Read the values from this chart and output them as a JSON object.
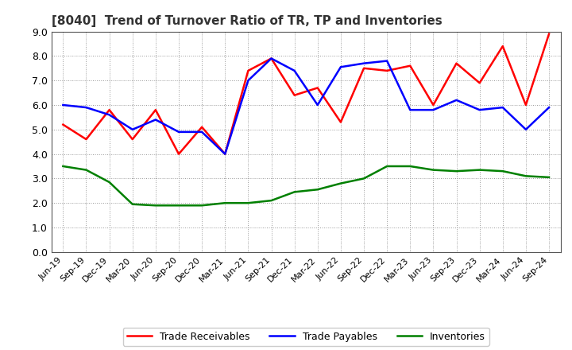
{
  "title": "[8040]  Trend of Turnover Ratio of TR, TP and Inventories",
  "x_labels": [
    "Jun-19",
    "Sep-19",
    "Dec-19",
    "Mar-20",
    "Jun-20",
    "Sep-20",
    "Dec-20",
    "Mar-21",
    "Jun-21",
    "Sep-21",
    "Dec-21",
    "Mar-22",
    "Jun-22",
    "Sep-22",
    "Dec-22",
    "Mar-23",
    "Jun-23",
    "Sep-23",
    "Dec-23",
    "Mar-24",
    "Jun-24",
    "Sep-24"
  ],
  "trade_receivables": [
    5.2,
    4.6,
    5.8,
    4.6,
    5.8,
    4.0,
    5.1,
    4.0,
    7.4,
    7.9,
    6.4,
    6.7,
    5.3,
    7.5,
    7.4,
    7.6,
    6.0,
    7.7,
    6.9,
    8.4,
    6.0,
    8.9
  ],
  "trade_payables": [
    6.0,
    5.9,
    5.6,
    5.0,
    5.4,
    4.9,
    4.9,
    4.0,
    7.0,
    7.9,
    7.4,
    6.0,
    7.55,
    7.7,
    7.8,
    5.8,
    5.8,
    6.2,
    5.8,
    5.9,
    5.0,
    5.9
  ],
  "inventories": [
    3.5,
    3.35,
    2.85,
    1.95,
    1.9,
    1.9,
    1.9,
    2.0,
    2.0,
    2.1,
    2.45,
    2.55,
    2.8,
    3.0,
    3.5,
    3.5,
    3.35,
    3.3,
    3.35,
    3.3,
    3.1,
    3.05
  ],
  "ylim": [
    0.0,
    9.0
  ],
  "yticks": [
    0.0,
    1.0,
    2.0,
    3.0,
    4.0,
    5.0,
    6.0,
    7.0,
    8.0,
    9.0
  ],
  "color_tr": "#FF0000",
  "color_tp": "#0000FF",
  "color_inv": "#008000",
  "legend_labels": [
    "Trade Receivables",
    "Trade Payables",
    "Inventories"
  ],
  "bg_color": "#FFFFFF",
  "grid_color": "#999999",
  "line_width": 1.8,
  "title_fontsize": 11,
  "tick_fontsize": 8,
  "ytick_fontsize": 9
}
